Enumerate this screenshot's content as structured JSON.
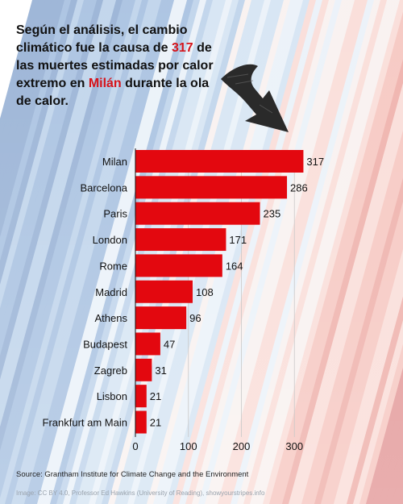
{
  "headline": {
    "p1": "Según el análisis, el cambio climático fue la causa de ",
    "num": "317",
    "p2": " de las muertes estimadas por calor extremo en ",
    "city": "Milán",
    "p3": " durante la ola de calor."
  },
  "colors": {
    "bar": "#e3080f",
    "accent": "#d6141b",
    "text": "#111111",
    "grid": "#c8c8c8"
  },
  "icons": {
    "arrow": "curved-down-right-arrow-icon"
  },
  "chart_data": {
    "type": "bar",
    "orientation": "horizontal",
    "categories": [
      "Milan",
      "Barcelona",
      "Paris",
      "London",
      "Rome",
      "Madrid",
      "Athens",
      "Budapest",
      "Zagreb",
      "Lisbon",
      "Frankfurt am Main"
    ],
    "values": [
      317,
      286,
      235,
      171,
      164,
      108,
      96,
      47,
      31,
      21,
      21
    ],
    "xticks": [
      0,
      100,
      200,
      300
    ],
    "xlim": [
      0,
      320
    ],
    "grid": "vertical",
    "title": "",
    "xlabel": "",
    "ylabel": ""
  },
  "footer": {
    "source": "Source: Grantham Institute for Climate Change and the Environment",
    "credit": "Image: CC BY 4.0, Professor Ed Hawkins (University of Reading), showyourstripes.info"
  }
}
